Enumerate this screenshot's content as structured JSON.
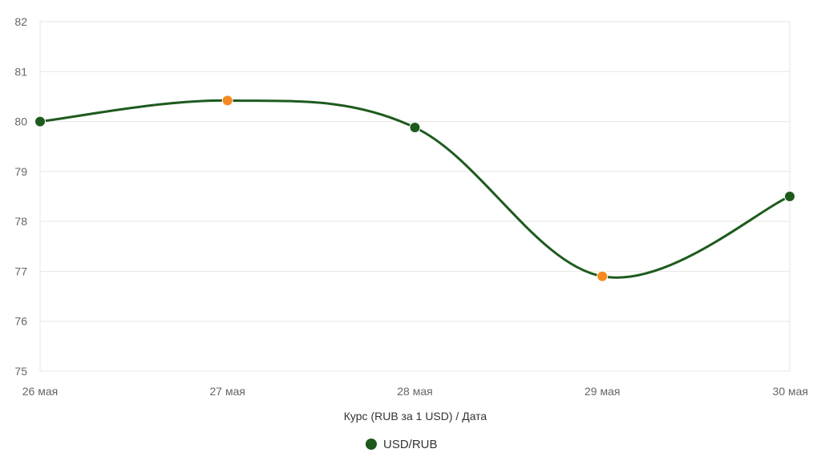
{
  "chart_data": {
    "type": "line",
    "categories": [
      "26 мая",
      "27 мая",
      "28 мая",
      "29 мая",
      "30 мая"
    ],
    "series": [
      {
        "name": "USD/RUB",
        "values": [
          80.0,
          80.42,
          79.88,
          76.9,
          78.5
        ],
        "color": "#1e5a1e",
        "point_colors": [
          "#1e5a1e",
          "#f58a1f",
          "#1e5a1e",
          "#f58a1f",
          "#1e5a1e"
        ]
      }
    ],
    "xlabel": "Курс (RUB за 1 USD) / Дата",
    "ylabel": "",
    "ylim": [
      75,
      82
    ],
    "yticks": [
      "75",
      "76",
      "77",
      "78",
      "79",
      "80",
      "81",
      "82"
    ],
    "grid": true,
    "legend": "bottom-center"
  },
  "colors": {
    "grid": "#e6e6e6",
    "axis_text": "#666666",
    "label_text": "#333333"
  }
}
